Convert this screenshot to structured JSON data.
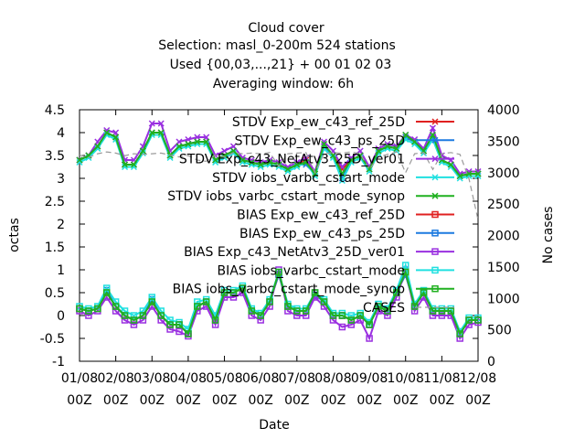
{
  "chart_data": {
    "type": "line",
    "title_lines": [
      "Cloud cover",
      "Selection: masl_0-200m    524 stations",
      "Used {00,03,...,21} + 00 01 02 03",
      "Averaging window:  6h"
    ],
    "xlabel": "Date",
    "ylabel": "octas",
    "y2label": "No cases",
    "ylim": [
      -1,
      4.5
    ],
    "y2lim": [
      0,
      4000
    ],
    "y_ticks": [
      "4.5",
      "4",
      "3.5",
      "3",
      "2.5",
      "2",
      "1.5",
      "1",
      "0.5",
      "0",
      "-0.5",
      "-1"
    ],
    "y2_ticks": [
      "4000",
      "3500",
      "3000",
      "2500",
      "2000",
      "1500",
      "1000",
      "500",
      "0"
    ],
    "x_ticks": [
      "01/08",
      "02/08",
      "03/08",
      "04/08",
      "05/08",
      "06/08",
      "07/08",
      "08/08",
      "09/08",
      "10/08",
      "11/08",
      "12/08"
    ],
    "x_tick_sub": "00Z",
    "x_steps": 44,
    "colors": {
      "red": "#e02020",
      "blue": "#1c7ae0",
      "purple": "#9a30e0",
      "cyan": "#20e0e0",
      "green": "#20b020",
      "gray": "#9a9a9a"
    },
    "series": [
      {
        "name": "STDV Exp_ew_c43_ref_25D",
        "color": "red",
        "marker": "x",
        "values": [
          3.4,
          3.5,
          3.7,
          4.0,
          3.9,
          3.3,
          3.3,
          3.6,
          4.0,
          4.0,
          3.5,
          3.7,
          3.75,
          3.8,
          3.8,
          3.4,
          3.5,
          3.6,
          3.4,
          3.35,
          3.3,
          3.35,
          3.3,
          3.2,
          3.3,
          3.4,
          3.1,
          3.7,
          3.5,
          3.2,
          3.4,
          3.5,
          3.2,
          3.6,
          3.7,
          3.65,
          3.9,
          3.8,
          3.6,
          3.9,
          3.4,
          3.3,
          3.05,
          3.1,
          3.1
        ]
      },
      {
        "name": "STDV Exp_ew_c43_ps_25D",
        "color": "blue",
        "marker": "x",
        "values": [
          3.4,
          3.5,
          3.7,
          4.0,
          3.9,
          3.3,
          3.3,
          3.6,
          4.0,
          4.0,
          3.5,
          3.7,
          3.75,
          3.8,
          3.8,
          3.4,
          3.5,
          3.6,
          3.4,
          3.35,
          3.3,
          3.35,
          3.3,
          3.2,
          3.3,
          3.3,
          3.1,
          3.7,
          3.5,
          3.0,
          3.4,
          3.5,
          3.2,
          3.6,
          3.7,
          3.65,
          3.9,
          3.8,
          3.6,
          3.9,
          3.4,
          3.3,
          3.05,
          3.1,
          3.1
        ]
      },
      {
        "name": "STDV Exp_c43_NetAtv3_25D_ver01",
        "color": "purple",
        "marker": "x",
        "values": [
          3.4,
          3.5,
          3.8,
          4.05,
          4.0,
          3.4,
          3.4,
          3.7,
          4.2,
          4.2,
          3.6,
          3.8,
          3.85,
          3.9,
          3.9,
          3.5,
          3.6,
          3.7,
          3.45,
          3.4,
          3.35,
          3.4,
          3.35,
          3.25,
          3.35,
          3.45,
          3.15,
          3.8,
          3.6,
          3.25,
          3.45,
          3.6,
          3.25,
          3.65,
          3.75,
          3.7,
          3.95,
          3.85,
          3.65,
          4.1,
          3.5,
          3.4,
          3.1,
          3.15,
          3.15
        ]
      },
      {
        "name": "STDV iobs_varbc_cstart_mode",
        "color": "cyan",
        "marker": "x",
        "values": [
          3.35,
          3.45,
          3.65,
          3.95,
          3.85,
          3.25,
          3.25,
          3.55,
          3.95,
          3.95,
          3.45,
          3.65,
          3.7,
          3.75,
          3.75,
          3.35,
          3.45,
          3.55,
          3.35,
          3.3,
          3.25,
          3.3,
          3.25,
          3.15,
          3.25,
          3.35,
          3.05,
          3.65,
          3.45,
          2.95,
          3.35,
          3.45,
          3.15,
          3.55,
          3.65,
          3.6,
          3.85,
          3.75,
          3.55,
          3.85,
          3.35,
          3.25,
          3.0,
          3.05,
          3.05
        ]
      },
      {
        "name": "STDV iobs_varbc_cstart_mode_synop",
        "color": "green",
        "marker": "x",
        "values": [
          3.4,
          3.5,
          3.7,
          4.0,
          3.9,
          3.3,
          3.3,
          3.6,
          4.0,
          4.0,
          3.5,
          3.7,
          3.75,
          3.8,
          3.8,
          3.4,
          3.5,
          3.6,
          3.4,
          3.35,
          3.3,
          3.35,
          3.3,
          3.2,
          3.3,
          3.35,
          3.1,
          3.75,
          3.5,
          3.1,
          3.4,
          3.5,
          3.2,
          3.6,
          3.7,
          3.65,
          3.95,
          3.8,
          3.6,
          3.95,
          3.4,
          3.3,
          3.05,
          3.1,
          3.1
        ]
      },
      {
        "name": "BIAS Exp_ew_c43_ref_25D",
        "color": "red",
        "marker": "sq",
        "values": [
          0.15,
          0.1,
          0.15,
          0.5,
          0.2,
          0.0,
          -0.1,
          0.0,
          0.3,
          0.0,
          -0.2,
          -0.2,
          -0.4,
          0.2,
          0.3,
          -0.1,
          0.5,
          0.5,
          0.6,
          0.1,
          0.0,
          0.3,
          0.9,
          0.2,
          0.1,
          0.1,
          0.5,
          0.3,
          0.0,
          0.0,
          -0.1,
          0.0,
          -0.2,
          0.2,
          0.1,
          0.5,
          0.9,
          0.2,
          0.5,
          0.1,
          0.1,
          0.1,
          -0.4,
          -0.1,
          -0.1
        ]
      },
      {
        "name": "BIAS Exp_ew_c43_ps_25D",
        "color": "blue",
        "marker": "sq",
        "values": [
          0.15,
          0.1,
          0.15,
          0.55,
          0.2,
          0.0,
          -0.1,
          0.0,
          0.35,
          0.0,
          -0.2,
          -0.2,
          -0.4,
          0.2,
          0.3,
          -0.1,
          0.5,
          0.5,
          0.6,
          0.1,
          0.0,
          0.3,
          0.9,
          0.2,
          0.1,
          0.1,
          0.45,
          0.3,
          0.0,
          0.0,
          -0.1,
          0.0,
          -0.2,
          0.2,
          0.1,
          0.5,
          0.9,
          0.2,
          0.5,
          0.1,
          0.1,
          0.1,
          -0.4,
          -0.1,
          -0.1
        ]
      },
      {
        "name": "BIAS Exp_c43_NetAtv3_25D_ver01",
        "color": "purple",
        "marker": "sq",
        "values": [
          0.1,
          0.0,
          0.1,
          0.4,
          0.1,
          -0.1,
          -0.2,
          -0.1,
          0.2,
          -0.1,
          -0.3,
          -0.35,
          -0.45,
          0.1,
          0.2,
          -0.2,
          0.4,
          0.4,
          0.5,
          0.0,
          -0.1,
          0.2,
          1.0,
          0.1,
          0.0,
          0.0,
          0.4,
          0.2,
          -0.1,
          -0.25,
          -0.2,
          -0.1,
          -0.5,
          0.1,
          0.0,
          0.4,
          1.0,
          0.1,
          0.4,
          0.0,
          0.0,
          0.0,
          -0.5,
          -0.2,
          -0.15
        ]
      },
      {
        "name": "BIAS iobs_varbc_cstart_mode",
        "color": "cyan",
        "marker": "sq",
        "values": [
          0.2,
          0.15,
          0.2,
          0.6,
          0.3,
          0.1,
          0.0,
          0.1,
          0.4,
          0.1,
          -0.1,
          -0.15,
          -0.3,
          0.3,
          0.35,
          0.0,
          0.55,
          0.55,
          0.65,
          0.15,
          0.05,
          0.35,
          0.95,
          0.25,
          0.15,
          0.15,
          0.5,
          0.35,
          0.05,
          0.05,
          0.0,
          0.05,
          -0.15,
          0.25,
          0.15,
          0.55,
          1.1,
          0.25,
          0.55,
          0.15,
          0.15,
          0.15,
          -0.35,
          -0.05,
          -0.05
        ]
      },
      {
        "name": "BIAS iobs_varbc_cstart_mode_synop",
        "color": "green",
        "marker": "sq",
        "values": [
          0.15,
          0.1,
          0.15,
          0.5,
          0.2,
          0.0,
          -0.1,
          0.0,
          0.3,
          0.0,
          -0.2,
          -0.2,
          -0.4,
          0.2,
          0.3,
          -0.1,
          0.5,
          0.5,
          0.6,
          0.1,
          0.0,
          0.3,
          0.95,
          0.2,
          0.1,
          0.1,
          0.5,
          0.3,
          0.0,
          0.0,
          -0.1,
          0.0,
          -0.2,
          0.2,
          0.1,
          0.5,
          0.95,
          0.2,
          0.5,
          0.1,
          0.1,
          0.1,
          -0.4,
          -0.1,
          -0.1
        ]
      },
      {
        "name": "CASES",
        "color": "gray",
        "marker": "none",
        "dashed": true,
        "axis": "y2",
        "values": [
          3280,
          3240,
          3300,
          3330,
          3310,
          3270,
          3300,
          3290,
          3300,
          3310,
          3280,
          3250,
          3270,
          3200,
          3180,
          3280,
          3250,
          3320,
          3300,
          3310,
          3300,
          3320,
          3100,
          3300,
          3310,
          3320,
          3000,
          3300,
          3320,
          3310,
          3330,
          3300,
          3050,
          3250,
          3290,
          3330,
          3000,
          3300,
          3320,
          3050,
          3300,
          3320,
          3290,
          2900,
          2250
        ]
      }
    ]
  }
}
